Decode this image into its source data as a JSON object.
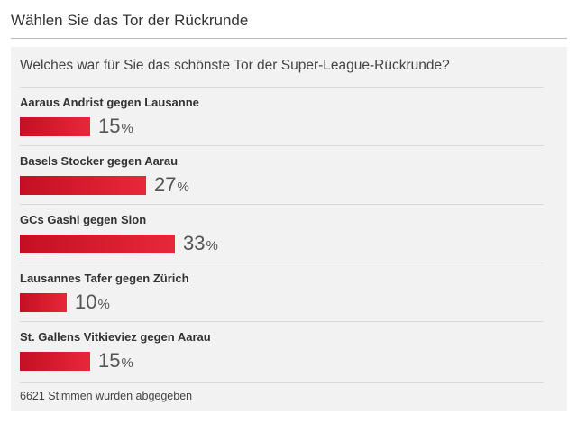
{
  "header": {
    "title": "Wählen Sie das Tor der Rückrunde"
  },
  "poll": {
    "question": "Welches war für Sie das schönste Tor der Super-League-Rückrunde?",
    "options": [
      {
        "label": "Aaraus Andrist gegen Lausanne",
        "percent": 15,
        "percent_text": "15",
        "percent_sign": "%"
      },
      {
        "label": "Basels Stocker gegen Aarau",
        "percent": 27,
        "percent_text": "27",
        "percent_sign": "%"
      },
      {
        "label": "GCs Gashi gegen Sion",
        "percent": 33,
        "percent_text": "33",
        "percent_sign": "%"
      },
      {
        "label": "Lausannes Tafer gegen Zürich",
        "percent": 10,
        "percent_text": "10",
        "percent_sign": "%"
      },
      {
        "label": "St. Gallens Vitkieviez gegen Aarau",
        "percent": 15,
        "percent_text": "15",
        "percent_sign": "%"
      }
    ],
    "votes_text": "6621 Stimmen wurden abgegeben"
  },
  "colors": {
    "bar_start": "#c40f22",
    "bar_end": "#e8283a"
  }
}
